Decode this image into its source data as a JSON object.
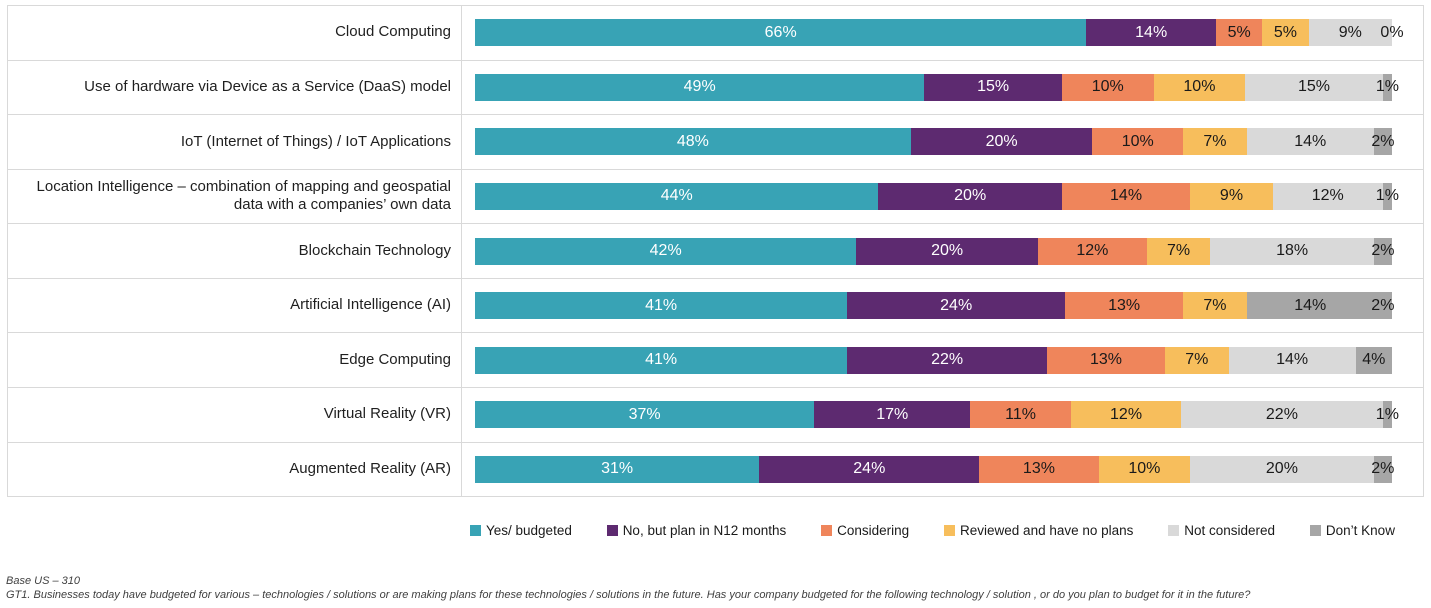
{
  "chart_data": {
    "type": "bar",
    "variant": "stacked-100-horizontal",
    "title": "",
    "xlabel": "",
    "ylabel": "",
    "grid": "row-separators",
    "legend_position": "bottom",
    "categories": [
      "Cloud Computing",
      "Use of hardware via Device as a Service (DaaS) model",
      "IoT (Internet of Things) / IoT Applications",
      "Location Intelligence – combination of mapping and geospatial data with a companies’ own data",
      "Blockchain Technology",
      "Artificial Intelligence (AI)",
      "Edge Computing",
      "Virtual Reality (VR)",
      "Augmented Reality (AR)"
    ],
    "series": [
      {
        "name": "Yes/ budgeted",
        "color": "#38a3b5",
        "label_color": "white",
        "values": [
          66,
          49,
          48,
          44,
          42,
          41,
          41,
          37,
          31
        ]
      },
      {
        "name": "No, but plan in N12 months",
        "color": "#5d2a70",
        "label_color": "white",
        "values": [
          14,
          15,
          20,
          20,
          20,
          24,
          22,
          17,
          24
        ]
      },
      {
        "name": "Considering",
        "color": "#ef855b",
        "label_color": "black",
        "values": [
          5,
          10,
          10,
          14,
          12,
          13,
          13,
          11,
          13
        ]
      },
      {
        "name": "Reviewed and have no plans",
        "color": "#f7be5c",
        "label_color": "black",
        "values": [
          5,
          10,
          7,
          9,
          7,
          7,
          7,
          12,
          10
        ]
      },
      {
        "name": "Not considered",
        "color": "#d9d9d9",
        "label_color": "black",
        "values": [
          9,
          15,
          14,
          12,
          18,
          14,
          14,
          22,
          20
        ]
      },
      {
        "name": "Don’t Know",
        "color": "#a6a6a6",
        "label_color": "black",
        "values": [
          0,
          1,
          2,
          1,
          2,
          2,
          4,
          1,
          2
        ]
      }
    ],
    "segment_color_overrides": [
      {
        "row": 5,
        "series": 4,
        "color": "#a6a6a6"
      }
    ],
    "value_suffix": "%"
  },
  "footer": {
    "line1": "Base US – 310",
    "line2": "GT1. Businesses today have budgeted for various – technologies / solutions or are making plans for these technologies / solutions in the future.  Has your company budgeted for the following technology / solution , or do you plan to budget for it in the future?"
  }
}
